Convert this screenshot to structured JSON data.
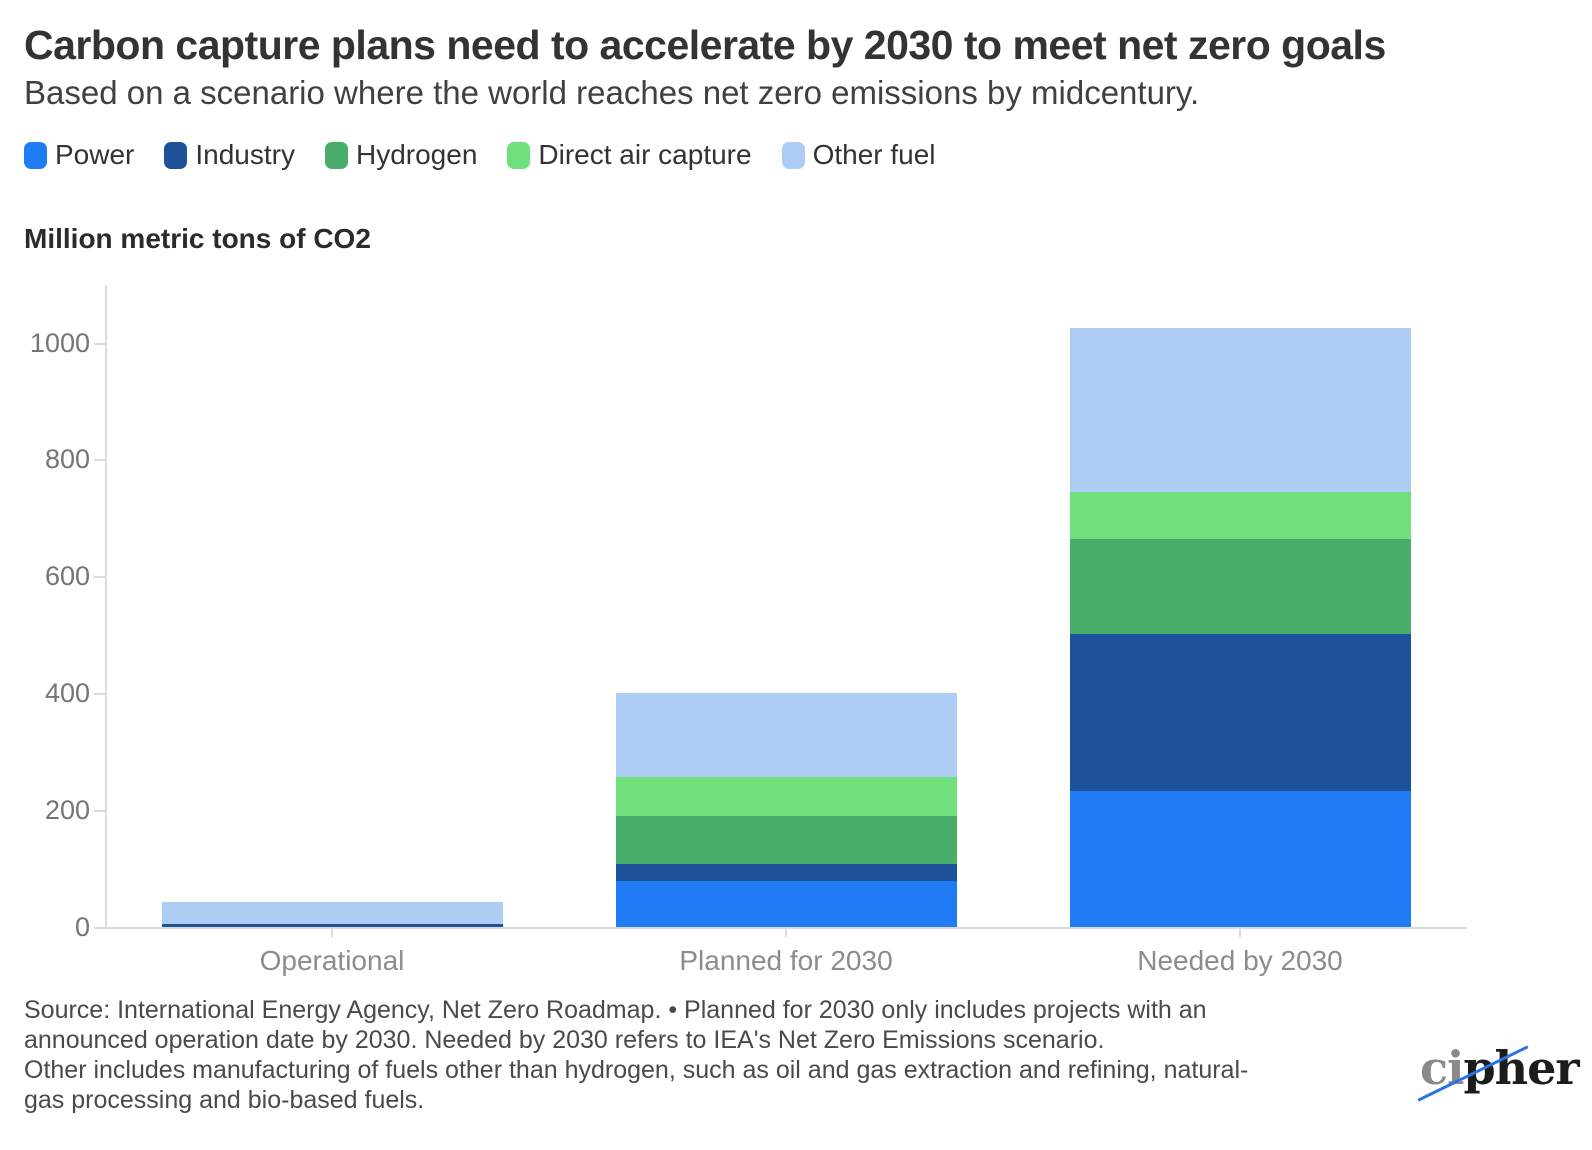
{
  "header": {
    "title": "Carbon capture plans need to accelerate by 2030 to meet net zero goals",
    "subtitle": "Based on a scenario where the world reaches net zero emissions by midcentury."
  },
  "axis_title": "Million metric tons of CO2",
  "chart_data": {
    "type": "bar",
    "stacked": true,
    "title": "Carbon capture plans need to accelerate by 2030 to meet net zero goals",
    "ylabel": "Million metric tons of CO2",
    "xlabel": "",
    "categories": [
      "Operational",
      "Planned for 2030",
      "Needed by 2030"
    ],
    "series": [
      {
        "name": "Power",
        "color": "#1f7cf4",
        "values": [
          0,
          78,
          232
        ]
      },
      {
        "name": "Industry",
        "color": "#1d529b",
        "values": [
          5,
          29,
          270
        ]
      },
      {
        "name": "Hydrogen",
        "color": "#48ad6b",
        "values": [
          0,
          83,
          161
        ]
      },
      {
        "name": "Direct air capture",
        "color": "#70e07d",
        "values": [
          0,
          67,
          81
        ]
      },
      {
        "name": "Other fuel",
        "color": "#aecdf4",
        "values": [
          38,
          143,
          281
        ]
      }
    ],
    "totals": [
      43,
      400,
      1025
    ],
    "yticks": [
      0,
      200,
      400,
      600,
      800,
      1000
    ],
    "ylim": [
      0,
      1100
    ],
    "grid": false,
    "legend_position": "top"
  },
  "footer": {
    "lines": [
      "Source: International Energy Agency, Net Zero Roadmap. • Planned for 2030 only includes projects with an",
      "announced operation date by 2030. Needed by 2030 refers to IEA's Net Zero Emissions scenario.",
      "Other includes manufacturing of fuels other than hydrogen, such as oil and gas extraction and refining, natural-",
      "gas processing and bio-based fuels."
    ]
  },
  "logo": {
    "gray_text": "ci",
    "dark_text": "pher",
    "slash_color": "#2b72e8"
  }
}
